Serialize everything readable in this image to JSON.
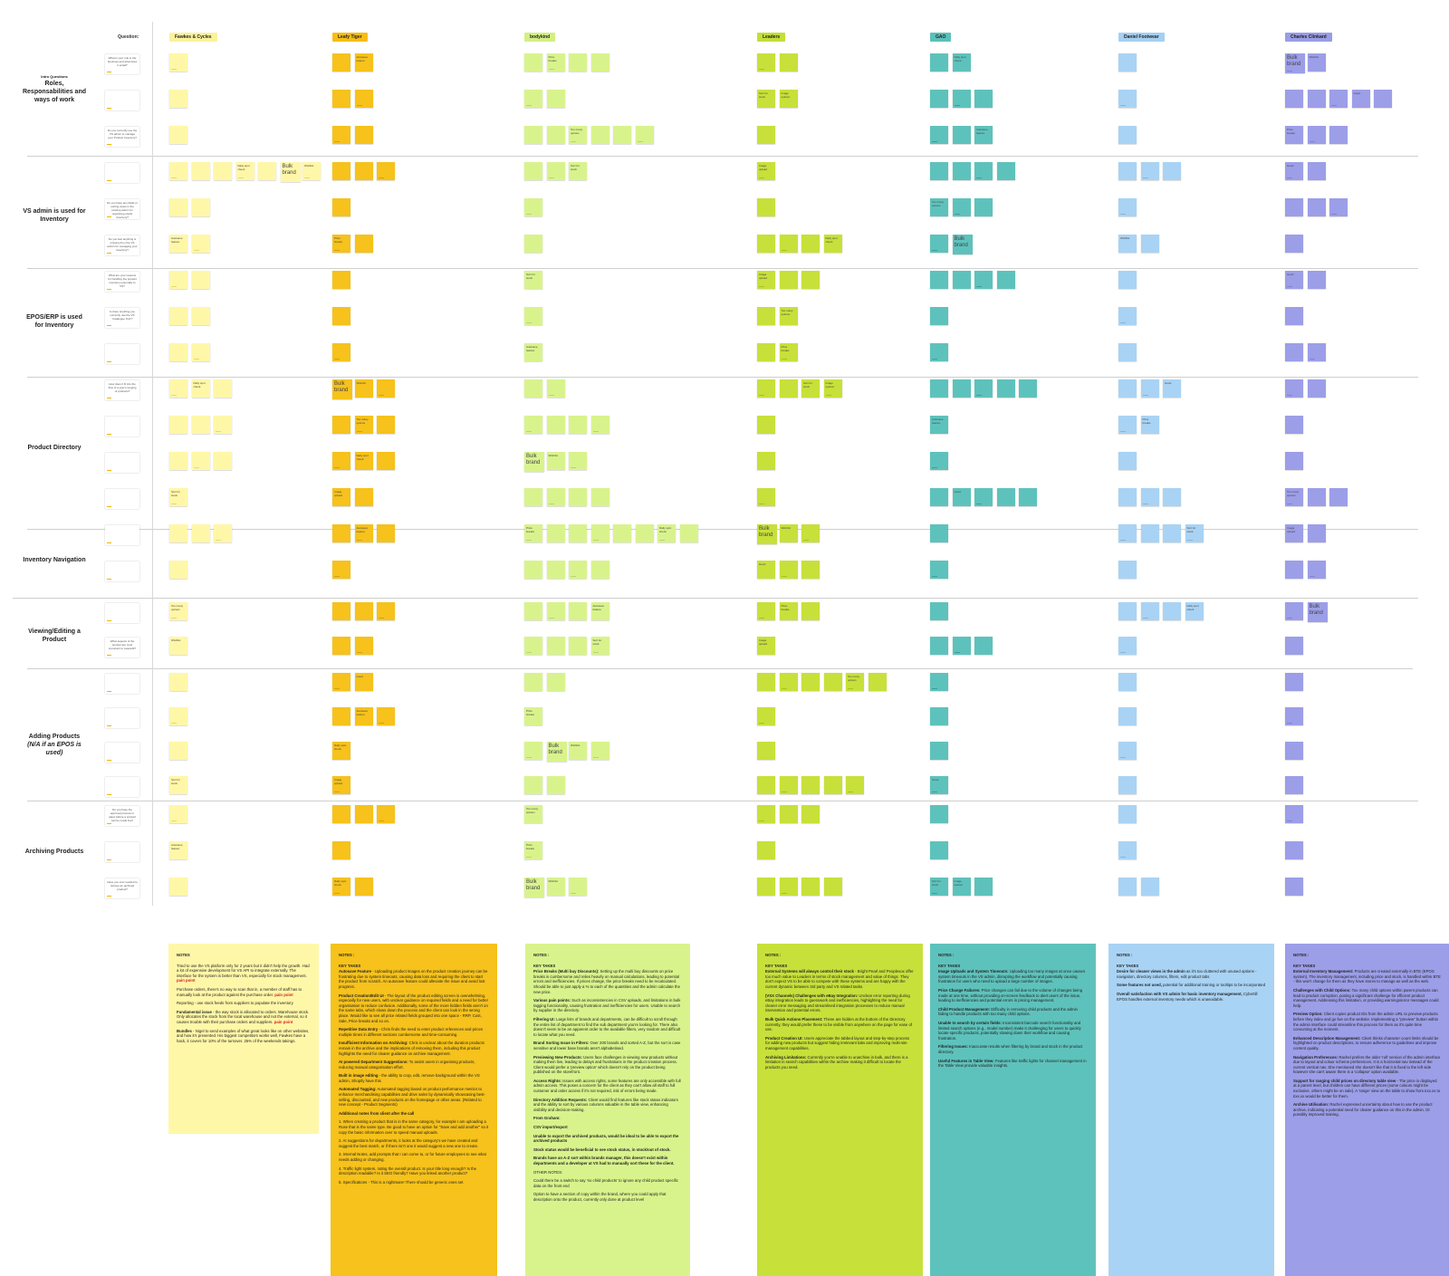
{
  "header": {
    "question_label": "Question:",
    "participants": [
      {
        "name": "Fawkes & Cycles",
        "color": "#fff7a8",
        "labelColor": "#fbf29b"
      },
      {
        "name": "Leafy Tiger",
        "color": "#f6c21b",
        "labelColor": "#f6bd16"
      },
      {
        "name": "bodykind",
        "color": "#d9f38c",
        "labelColor": "#d3ef84"
      },
      {
        "name": "Leaders",
        "color": "#c8e03a",
        "labelColor": "#c4de38"
      },
      {
        "name": "GAO",
        "color": "#5ec2bc",
        "labelColor": "#5bc0ba"
      },
      {
        "name": "Daniel Footwear",
        "color": "#a9d3f4",
        "labelColor": "#a5d0f2"
      },
      {
        "name": "Charles Clinkard",
        "color": "#9c9ee8",
        "labelColor": "#9a9ce6"
      }
    ]
  },
  "sections": [
    {
      "title": "Roles, Responsabilities and ways of work",
      "subtitle": "Intro Questions",
      "italic": false
    },
    {
      "title": "VS admin is used for Inventory",
      "subtitle": "",
      "italic": false
    },
    {
      "title": "EPOS/ERP is used for Inventory",
      "subtitle": "",
      "italic": false
    },
    {
      "title": "Product Directory",
      "subtitle": "",
      "italic": false
    },
    {
      "title": "Inventory Navigation",
      "subtitle": "",
      "italic": false
    },
    {
      "title": "Viewing/Editing a Product",
      "subtitle": "",
      "italic": false
    },
    {
      "title": "Adding Products",
      "subtitle": "(N/A if an EPOS is used)",
      "italic": true
    },
    {
      "title": "Archiving Products",
      "subtitle": "",
      "italic": false
    }
  ],
  "questions": [
    "What is your role in the business and what does it entail?",
    "",
    "Do you currently use the VS admin to manage your Product Inventory?",
    "",
    "Do you have any fields or sorting views in the existing admin for organising stock/ inventory?",
    "Do you feel anything is missing from the VS admin for managing your inventory?",
    "What are your reasons for handling the product inventory externally to VS?",
    "Is there anything you currently use the VS 'Catalogue Tool'?",
    "",
    "How does it fit into the flow of a user's ranging of products?",
    "",
    "",
    "",
    "",
    "",
    "",
    "What aspects of the product are most important to view/edit?",
    "",
    "",
    "",
    "",
    "Do you have the approval process in place before a product can be made live?",
    "",
    "Have you ever needed to retrieve an archived product?",
    "How long would you expect a product to be stored in the archive?"
  ],
  "sticky_text": [
    "",
    "",
    "Autosave feature",
    "",
    "Price breaks",
    "",
    "",
    "",
    "",
    "",
    "Daily spot check",
    "",
    "Bulk brand",
    "Wishlist",
    "",
    "",
    "",
    "",
    "",
    "Sort for stock",
    "Image upload",
    "",
    "",
    "",
    "",
    "",
    "",
    "",
    "Good",
    "",
    "",
    "",
    "",
    "",
    "",
    "Too many options",
    "",
    "",
    "",
    ""
  ],
  "notes": [
    {
      "title": "NOTES",
      "paragraphs": [
        {
          "text": "Tried to use the VS platform only for 2 years but it didn't help the growth. Had a lot of expensive development for VS API to integrate externally. The interface for the system is better than VS, especially for stock management.",
          "pain": "pain point"
        },
        {
          "text": "Purchase orders, there's no way to scan that in, a member of staff has to manually look at the product against the purchase order.",
          "pain": "pain point"
        },
        {
          "text": "Reporting - use stock feeds from suppliers to populate the inventory",
          "pain": ""
        },
        {
          "head": "Fundamental issue",
          "text": " - the way stock is allocated to orders. Warehouse stock. Only allocates the stock from the local warehouse and not the external, so it causes trouble with their purchase orders and suppliers.",
          "pain": "pain point"
        },
        {
          "head": "Bundles",
          "text": " - Nigel to send examples of what great looks like on other websites, and how it's presented. His biggest competitors works well, Fawkes have a hack, it covers for 10% of the turnover. 25% of the weekends takings.",
          "pain": ""
        }
      ]
    },
    {
      "title": "NOTES :",
      "keytakes": "KEY TAKES",
      "paragraphs": [
        {
          "head": "Autosave Feature",
          "text": " - Uploading product images on the product creation journey can be frustrating due to system timeouts, causing data loss and requiring the client to start the product from scratch. An autosave feature could alleviate the issue and avoid lost progress."
        },
        {
          "head": "Product Creation/Edit UI",
          "text": " - The layout of the product editing screen is overwhelming, especially for new users, with unclear guidance on required fields and a need for better organisation to reduce confusion. Additionally, some of the more hidden fields aren't on the same tabs, which slows down the process and the client can look in the wrong place. Would like to see all price related fields grouped into one space - RRP, Cost, Sale, Price breaks and so on."
        },
        {
          "head": "Repetitive Data Entry",
          "text": " - Chris finds the need to enter product references and prices multiple times in different sections cumbersome and time-consuming."
        },
        {
          "head": "Insufficient Information on Archiving:",
          "text": " Chris is unclear about the duration products remain in the archive and the implications of removing them, including this product highlights the need for clearer guidance on archive management."
        },
        {
          "head": "AI powered Department Suggestions:",
          "text": " To assist users in organising products, reducing manual categorisation effort."
        },
        {
          "head": "Built in image editing",
          "text": " - the ability to crop, edit, remove background within the VS admin, Shopify have this"
        },
        {
          "head": "Automated Tagging:",
          "text": " Automated tagging based on product performance metrics to enhance merchandising capabilities and drive sales by dynamically showcasing best-selling, discounted, and new products on the homepage or other areas. (Related to new concept - Product Segments)"
        },
        {
          "head": "Additional notes from client after the call",
          "text": ""
        },
        {
          "head": "",
          "text": "1. When creating a product that is in the same category, for example I am uploading a Rose that is the same type. Be good to have an option for \"Save and add another\" so it copy the basic information over to speed manual uploads."
        },
        {
          "head": "",
          "text": "2. AI suggestions for departments, it looks at the category's we have created and suggest the best match, or if there isn't one it would suggest a new one to create."
        },
        {
          "head": "",
          "text": "3. Internal Notes, add prompts that I can come to, or for future employees to see what needs adding or changing."
        },
        {
          "head": "",
          "text": "4. Traffic light system, rating the overall product. Is your title long enough? Is the description readable? Is it SEO friendly? Have you linked another product?"
        },
        {
          "head": "",
          "text": "5. Specifications - This is a nightmare! There should be generic ones set"
        }
      ]
    },
    {
      "title": "NOTES :",
      "keytakes": "KEY TAKES",
      "paragraphs": [
        {
          "head": "Price Breaks (Multi buy Discounts):",
          "text": " Setting up the multi buy discounts on price breaks is cumbersome and relies heavily on manual calculations, leading to potential errors and inefficiencies. If prices change, the price breaks need to be recalculated. Should be able to just apply a % to each of the quantities and the admin calculate the new price."
        },
        {
          "head": "Various pain points:",
          "text": " Such as inconsistencies in CSV uploads, and limitations in bulk tagging functionality, causing frustration and inefficiencies for users. Unable to search by supplier in the directory."
        },
        {
          "head": "Filtering UI:",
          "text": " Large lists of brands and departments, can be difficult to scroll through the entire list of department to find the sub department you're looking for. There also doesn't seem to be an apparent order to the available filters, very random and difficult to locate what you need."
        },
        {
          "head": "Brand Sorting Issue in Filters:",
          "text": " Over 200 brands and sorted A-Z, but the sort is case sensitive and lower base brands aren't alphabetised."
        },
        {
          "head": "Previewing New Products:",
          "text": " Users face challenges in viewing new products without making them live, leading to delays and frustrations in the product creation process. Client would prefer a 'preview option' which doesn't rely on the product being published on the storefront."
        },
        {
          "head": "Access Rights:",
          "text": " Issues with access rights, some features are only accessible with full admin access. This poses a concern for the client as they can't allow all staff to full customer and order access if it's not required, risk of errors being made."
        },
        {
          "head": "Directory Addition Requests:",
          "text": " Client would find features like stock status indicators and the ability to sort by various columns valuable in the table view, enhancing visibility and decision-making."
        },
        {
          "head": "From Graham:",
          "text": ""
        },
        {
          "head": "CSV import/export",
          "text": ""
        },
        {
          "head": "Unable to export the archived products, would be ideal to be able to export the archived products",
          "text": ""
        },
        {
          "head": "Stock status would be beneficial to see stock status, in stock/out of stock.",
          "text": ""
        },
        {
          "head": "Brands have an A-Z sort within brands manager, this doesn't exist within departments and a developer at VS had to manually sort these for the client.",
          "text": ""
        },
        {
          "head": "",
          "text": "OTHER NOTES:"
        },
        {
          "head": "",
          "text": "Could there be a switch to say 'no child products' to ignore any child product specific data on the front end"
        },
        {
          "head": "",
          "text": "Option to have a section of copy within the brand, where you could apply that description onto the product, currently only done at product level"
        }
      ]
    },
    {
      "title": "NOTES :",
      "keytakes": "KEY TAKES",
      "paragraphs": [
        {
          "head": "External Systems will always control their stock",
          "text": " - Bright Pearl and Peoplevox offer too much value to Leaders in terms of stock management and value of things. They don't expect VS to be able to compete with these systems and are happy with the current dynamic between 3rd party and VS related tasks."
        },
        {
          "head": "(VSX Channels)  Challenges with eBay Integration:",
          "text": " Unclear error reporting during eBay integration leads to guesswork and inefficiencies, highlighting the need for clearer error messaging and streamlined integration processes to reduce manual intervention and potential errors."
        },
        {
          "head": "Bulk Quick Actions Placement:",
          "text": " These are hidden at the bottom of the Directory currently, they would prefer these to be visible from anywhere on the page for ease of use."
        },
        {
          "head": "Product Creation UI:",
          "text": " Users appreciate the tabbed layout and step-by-step process for adding new products but suggest hiding irrelevant tabs and improving multi-site management capabilities."
        },
        {
          "head": "Archiving Limitations:",
          "text": " Currently you're unable to unarchive in bulk, and there is a limitation in search capabilities within the archive making it difficult to locate the products you need."
        }
      ]
    },
    {
      "title": "NOTES :",
      "keytakes": "KEY TAKES",
      "paragraphs": [
        {
          "head": "Image Uploads and System Timeouts:",
          "text": " Uploading too many images at once causes system timeouts in the VS admin, disrupting the workflow and potentially causing frustration for users who need to upload a large number of images."
        },
        {
          "head": "Price Change Failures:",
          "text": " Price changes can fail due to the volume of changes being made at one time, without providing on-screen feedback to alert users of the issue, leading to inefficiencies and potential errors in pricing management."
        },
        {
          "head": "Child Product Management:",
          "text": " Difficulty in removing child products and the admin failing to handle products with too many child options."
        },
        {
          "head": "Unable to search by certain fields:",
          "text": " Inconsistent barcode search functionality and limited search options (e.g., model number) make it challenging for users to quickly locate specific products, potentially slowing down their workflow and causing frustration."
        },
        {
          "head": "Filtering Issues:",
          "text": " Inaccurate results when filtering by brand and stock in the product directory."
        },
        {
          "head": "Useful Features in Table View:",
          "text": " Features like traffic lights for channel management in the Table View provide valuable insights."
        }
      ]
    },
    {
      "title": "NOTES :",
      "keytakes": "KEY TAKES",
      "paragraphs": [
        {
          "head": "Desire for cleaner views in the admin",
          "text": " as it's too cluttered with unused options - navigation, directory columns, filters, edit product tabs"
        },
        {
          "head": "Some features not used,",
          "text": " potential for additional training or tooltips to be incorporated"
        },
        {
          "head": "Overall satisfaction with VS admin for basic inventory management,",
          "text": " Cybertill EPOS handles external inventory needs which is unavoidable."
        }
      ]
    },
    {
      "title": "NOTES :",
      "keytakes": "KEY TAKES",
      "paragraphs": [
        {
          "head": "External Inventory Management:",
          "text": " Products are created externally in BTE (EPOS system). The inventory management, including price and stock, is handled within BTE - this won't change for them as they have stores to manage as well as the web."
        },
        {
          "head": "Challenges with Child Options:",
          "text": " Too many child options within parent products can lead to product corruption, posing a significant challenge for efficient product management. Addressing this limitation, or providing warnings/error messages could help."
        },
        {
          "head": "Preview Option:",
          "text": " Client copies product IDs from the admin URL to preview products before they index and go live on the website. Implementing a \"preview\" button within the admin interface could streamline this process for them as it's quite time consuming at the moment."
        },
        {
          "head": "Enhanced Description Management:",
          "text": " Client thinks character count limits should be highlighted on product descriptions, to ensure adherence to guidelines and improve content quality."
        },
        {
          "head": "Navigation Preferences:",
          "text": " Rachel prefers the older 'roll' version of the admin interface due to layout and colour scheme preferences. It is a horizontal nav instead of the current vertical nav. She mentioned she doesn't like that it is fixed to the left side however she can't aware there is a 'collapse' option available."
        },
        {
          "head": "Support for ranging child prices on directory table view",
          "text": " - The price is displayed at a parent level, but children can have different prices (some colours might be exclusive, others might be on sale). A 'range' view on the table to show from £xx.xx to £xx.xx would be better for them."
        },
        {
          "head": "Archive Utilisation:",
          "text": " Rachel expressed uncertainty about how to use the product archive, indicating a potential need for clearer guidance on this in the admin. Or possibly improved training."
        }
      ]
    }
  ]
}
